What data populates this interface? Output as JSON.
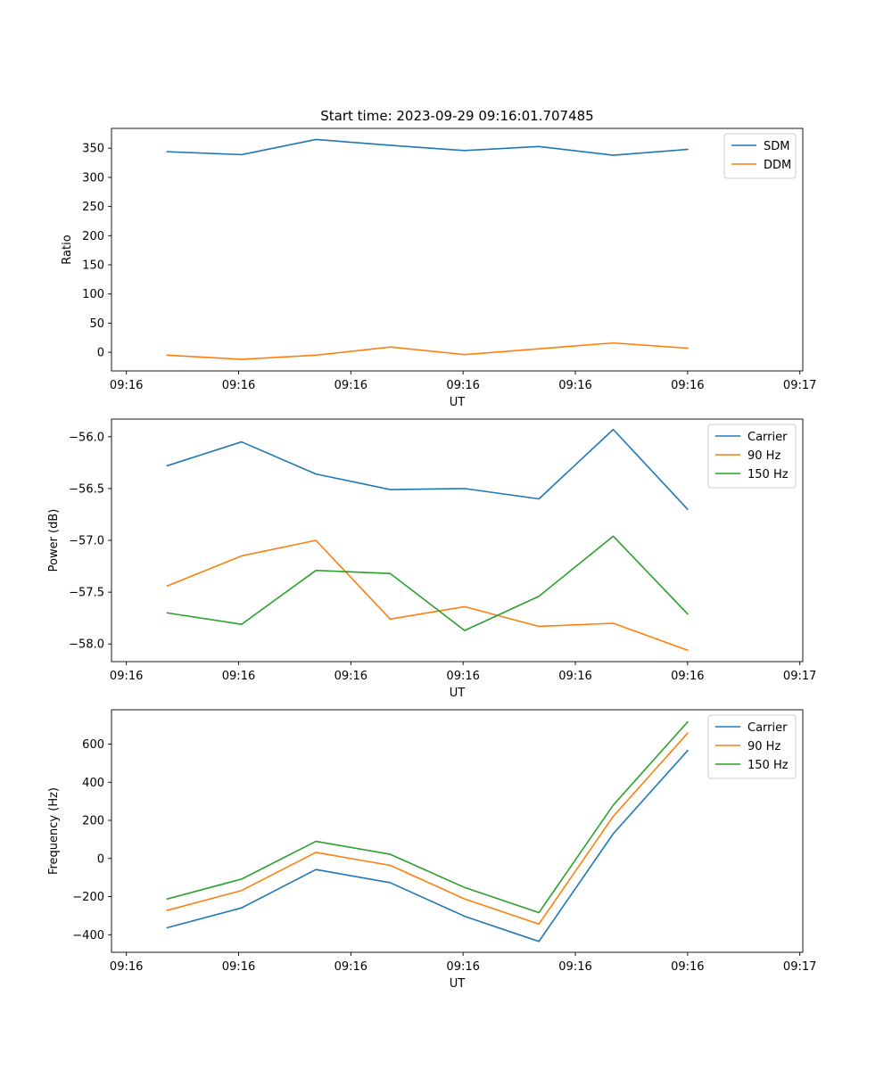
{
  "figure": {
    "title": "Start time: 2023-09-29 09:16:01.707485"
  },
  "chart_data": [
    {
      "type": "line",
      "title": "Start time: 2023-09-29 09:16:01.707485",
      "xlabel": "UT",
      "ylabel": "Ratio",
      "x": [
        1,
        2,
        3,
        4,
        5,
        6,
        7,
        8
      ],
      "xlim": [
        0.25,
        9.55
      ],
      "xticks": [
        0.45,
        1.96,
        3.47,
        4.98,
        6.49,
        8.0,
        9.51
      ],
      "xtick_labels": [
        "09:16",
        "09:16",
        "09:16",
        "09:16",
        "09:16",
        "09:16",
        "09:17"
      ],
      "ylim": [
        -32,
        384
      ],
      "yticks": [
        0,
        50,
        100,
        150,
        200,
        250,
        300,
        350
      ],
      "ytick_labels": [
        "0",
        "50",
        "100",
        "150",
        "200",
        "250",
        "300",
        "350"
      ],
      "legend_position": "top-right",
      "series": [
        {
          "name": "SDM",
          "color": "#1f77b4",
          "values": [
            344,
            339,
            365,
            355,
            346,
            353,
            338,
            348
          ]
        },
        {
          "name": "DDM",
          "color": "#ff7f0e",
          "values": [
            -5,
            -12,
            -5,
            9,
            -4,
            6,
            16,
            7
          ]
        }
      ]
    },
    {
      "type": "line",
      "title": "",
      "xlabel": "UT",
      "ylabel": "Power (dB)",
      "x": [
        1,
        2,
        3,
        4,
        5,
        6,
        7,
        8
      ],
      "xlim": [
        0.25,
        9.55
      ],
      "xticks": [
        0.45,
        1.96,
        3.47,
        4.98,
        6.49,
        8.0,
        9.51
      ],
      "xtick_labels": [
        "09:16",
        "09:16",
        "09:16",
        "09:16",
        "09:16",
        "09:16",
        "09:17"
      ],
      "ylim": [
        -58.17,
        -55.83
      ],
      "yticks": [
        -56.0,
        -56.5,
        -57.0,
        -57.5,
        -58.0
      ],
      "ytick_labels": [
        "−56.0",
        "−56.5",
        "−57.0",
        "−57.5",
        "−58.0"
      ],
      "legend_position": "top-right",
      "series": [
        {
          "name": "Carrier",
          "color": "#1f77b4",
          "values": [
            -56.28,
            -56.05,
            -56.36,
            -56.51,
            -56.5,
            -56.6,
            -55.93,
            -56.7
          ]
        },
        {
          "name": "90 Hz",
          "color": "#ff7f0e",
          "values": [
            -57.44,
            -57.15,
            -57.0,
            -57.76,
            -57.64,
            -57.83,
            -57.8,
            -58.06
          ]
        },
        {
          "name": "150 Hz",
          "color": "#2ca02c",
          "values": [
            -57.7,
            -57.81,
            -57.29,
            -57.32,
            -57.87,
            -57.54,
            -56.96,
            -57.71
          ]
        }
      ]
    },
    {
      "type": "line",
      "title": "",
      "xlabel": "UT",
      "ylabel": "Frequency (Hz)",
      "x": [
        1,
        2,
        3,
        4,
        5,
        6,
        7,
        8
      ],
      "xlim": [
        0.25,
        9.55
      ],
      "xticks": [
        0.45,
        1.96,
        3.47,
        4.98,
        6.49,
        8.0,
        9.51
      ],
      "xtick_labels": [
        "09:16",
        "09:16",
        "09:16",
        "09:16",
        "09:16",
        "09:16",
        "09:17"
      ],
      "ylim": [
        -492,
        780
      ],
      "yticks": [
        -400,
        -200,
        0,
        200,
        400,
        600
      ],
      "ytick_labels": [
        "−400",
        "−200",
        "0",
        "200",
        "400",
        "600"
      ],
      "legend_position": "top-right",
      "series": [
        {
          "name": "Carrier",
          "color": "#1f77b4",
          "values": [
            -363,
            -259,
            -58,
            -127,
            -303,
            -435,
            130,
            566
          ]
        },
        {
          "name": "90 Hz",
          "color": "#ff7f0e",
          "values": [
            -272,
            -168,
            32,
            -36,
            -212,
            -344,
            221,
            657
          ]
        },
        {
          "name": "150 Hz",
          "color": "#2ca02c",
          "values": [
            -212,
            -108,
            90,
            22,
            -152,
            -284,
            280,
            716
          ]
        }
      ]
    }
  ]
}
